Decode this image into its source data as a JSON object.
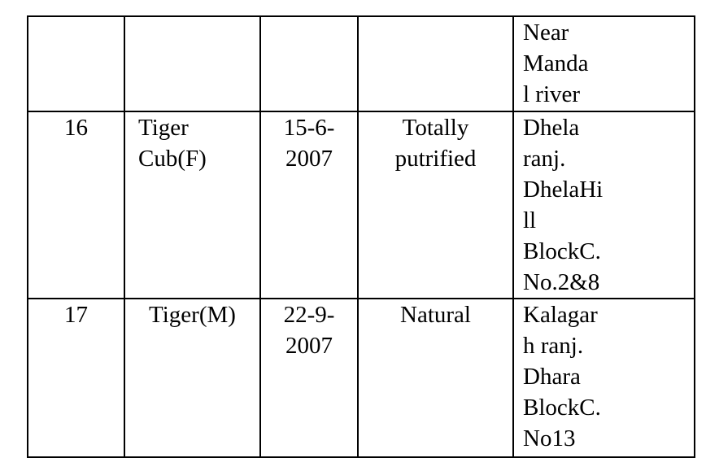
{
  "rows": [
    {
      "serial": [],
      "animal": [],
      "date": [],
      "condition": [],
      "location": [
        "Near",
        "Manda",
        "l river"
      ]
    },
    {
      "serial": [
        "16"
      ],
      "animal": [
        "Tiger",
        "Cub(F)"
      ],
      "date": [
        "15-6-",
        "2007"
      ],
      "condition": [
        "Totally",
        "putrified"
      ],
      "location": [
        "Dhela",
        "ranj.",
        "DhelaHi",
        "ll",
        "BlockC.",
        "No.2&8"
      ]
    },
    {
      "serial": [
        "17"
      ],
      "animal": [
        "Tiger(M)"
      ],
      "date": [
        "22-9-",
        "2007"
      ],
      "condition": [
        "Natural"
      ],
      "location": [
        "Kalagar",
        "h ranj.",
        "Dhara",
        "BlockC.",
        "No13"
      ]
    }
  ]
}
